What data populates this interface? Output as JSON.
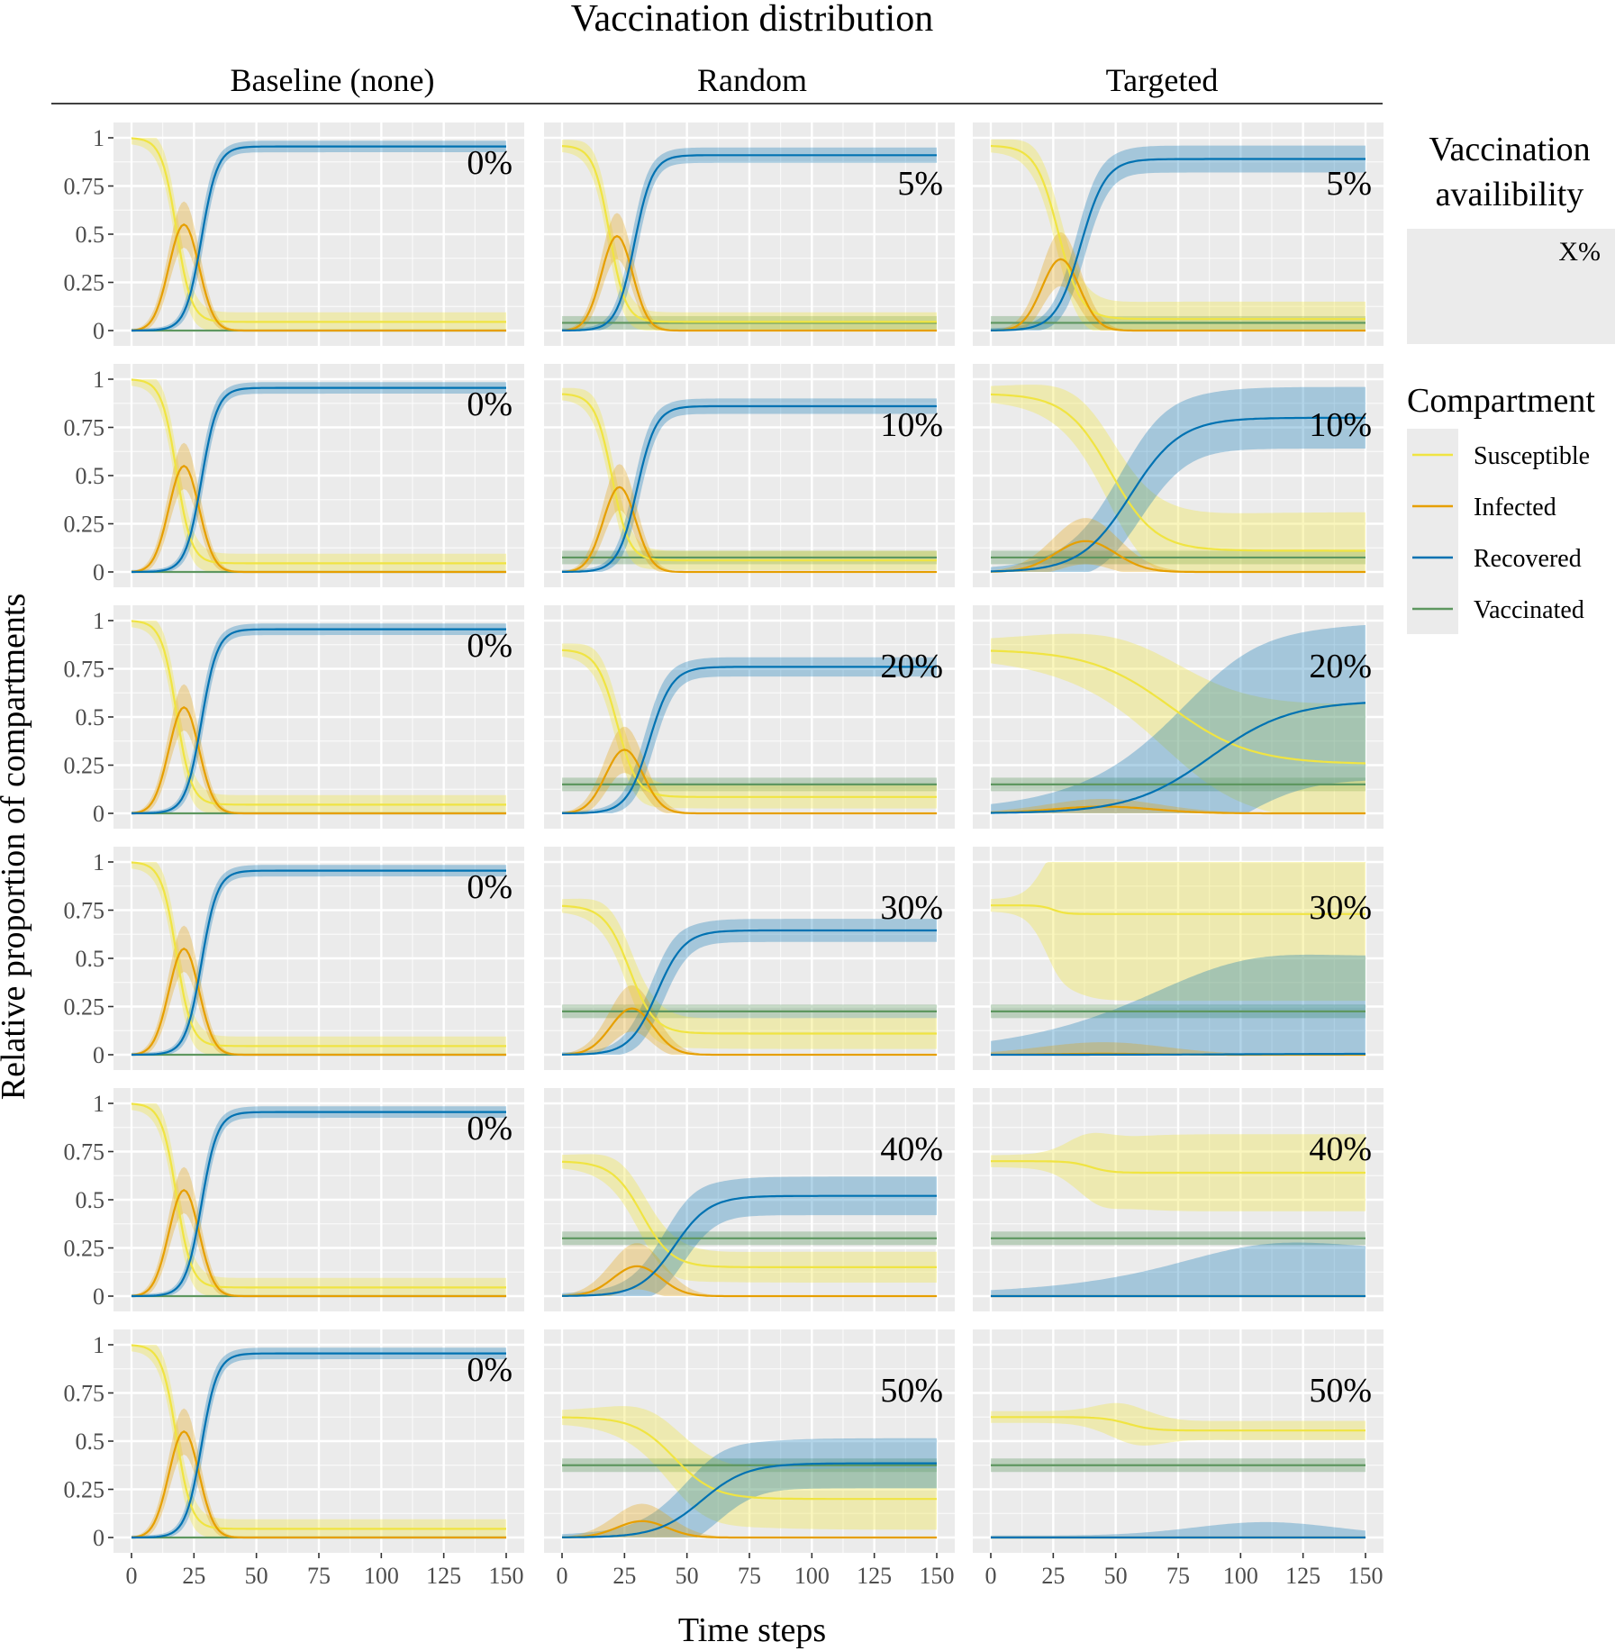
{
  "figure": {
    "title": "Vaccination distribution",
    "xlabel": "Time steps",
    "ylabel": "Relative proportion of compartments",
    "column_labels": [
      "Baseline (none)",
      "Random",
      "Targeted"
    ]
  },
  "legend": {
    "facet_title": "Vaccination availibility",
    "facet_example": "X%",
    "title": "Compartment",
    "items": [
      "Susceptible",
      "Infected",
      "Recovered",
      "Vaccinated"
    ]
  },
  "colors": {
    "Susceptible": "#f0e442",
    "Infected": "#e69f00",
    "Recovered": "#0072b2",
    "Vaccinated": "#5e9760",
    "panel_bg": "#ebebeb",
    "grid": "#ffffff"
  },
  "chart_data": {
    "type": "line",
    "x_range": [
      0,
      150
    ],
    "y_range": [
      0,
      1
    ],
    "x_ticks": [
      0,
      25,
      50,
      75,
      100,
      125,
      150
    ],
    "x_tick_labels": [
      "0",
      "25",
      "50",
      "75",
      "100",
      "125",
      "150"
    ],
    "y_ticks": [
      0,
      0.25,
      0.5,
      0.75,
      1
    ],
    "y_tick_labels": [
      "0",
      "0.25",
      "0.5",
      "0.75",
      "1"
    ],
    "grid": true,
    "rows": [
      [
        "0%",
        "5%",
        "5%"
      ],
      [
        "0%",
        "10%",
        "10%"
      ],
      [
        "0%",
        "20%",
        "20%"
      ],
      [
        "0%",
        "30%",
        "30%"
      ],
      [
        "0%",
        "40%",
        "40%"
      ],
      [
        "0%",
        "50%",
        "50%"
      ]
    ],
    "panel_series": {
      "Baseline (none)": [
        {
          "v": 0.0,
          "sStart": 1.0,
          "sEnd": 0.045,
          "sT": 18,
          "sW": 3.0,
          "sBandEnd": 0.02,
          "rEnd": 0.955,
          "rT": 28,
          "rW": 3.2,
          "rBand": 0.02,
          "iPeak": 0.55,
          "iT": 21,
          "iW": 6,
          "iBand": 0.12
        },
        {
          "v": 0.0,
          "sStart": 1.0,
          "sEnd": 0.045,
          "sT": 18,
          "sW": 3.0,
          "sBandEnd": 0.02,
          "rEnd": 0.955,
          "rT": 28,
          "rW": 3.2,
          "rBand": 0.02,
          "iPeak": 0.55,
          "iT": 21,
          "iW": 6,
          "iBand": 0.12
        },
        {
          "v": 0.0,
          "sStart": 1.0,
          "sEnd": 0.045,
          "sT": 18,
          "sW": 3.0,
          "sBandEnd": 0.02,
          "rEnd": 0.955,
          "rT": 28,
          "rW": 3.2,
          "rBand": 0.02,
          "iPeak": 0.55,
          "iT": 21,
          "iW": 6,
          "iBand": 0.12
        },
        {
          "v": 0.0,
          "sStart": 1.0,
          "sEnd": 0.045,
          "sT": 18,
          "sW": 3.0,
          "sBandEnd": 0.02,
          "rEnd": 0.955,
          "rT": 28,
          "rW": 3.2,
          "rBand": 0.02,
          "iPeak": 0.55,
          "iT": 21,
          "iW": 6,
          "iBand": 0.12
        },
        {
          "v": 0.0,
          "sStart": 1.0,
          "sEnd": 0.045,
          "sT": 18,
          "sW": 3.0,
          "sBandEnd": 0.02,
          "rEnd": 0.955,
          "rT": 28,
          "rW": 3.2,
          "rBand": 0.02,
          "iPeak": 0.55,
          "iT": 21,
          "iW": 6,
          "iBand": 0.12
        },
        {
          "v": 0.0,
          "sStart": 1.0,
          "sEnd": 0.045,
          "sT": 18,
          "sW": 3.0,
          "sBandEnd": 0.02,
          "rEnd": 0.955,
          "rT": 28,
          "rW": 3.2,
          "rBand": 0.02,
          "iPeak": 0.55,
          "iT": 21,
          "iW": 6,
          "iBand": 0.12
        }
      ],
      "Random": [
        {
          "v": 0.04,
          "sStart": 0.96,
          "sEnd": 0.045,
          "sT": 19,
          "sW": 3.2,
          "sBandEnd": 0.02,
          "rEnd": 0.91,
          "rT": 29,
          "rW": 3.6,
          "rBand": 0.03,
          "iPeak": 0.49,
          "iT": 22,
          "iW": 6.2,
          "iBand": 0.12
        },
        {
          "v": 0.075,
          "sStart": 0.925,
          "sEnd": 0.06,
          "sT": 20,
          "sW": 3.4,
          "sBandEnd": 0.02,
          "rEnd": 0.86,
          "rT": 30,
          "rW": 3.8,
          "rBand": 0.03,
          "iPeak": 0.44,
          "iT": 23,
          "iW": 6.5,
          "iBand": 0.12
        },
        {
          "v": 0.15,
          "sStart": 0.85,
          "sEnd": 0.085,
          "sT": 22,
          "sW": 4.0,
          "sBandEnd": 0.03,
          "rEnd": 0.76,
          "rT": 35,
          "rW": 4.5,
          "rBand": 0.04,
          "iPeak": 0.33,
          "iT": 25,
          "iW": 7.5,
          "iBand": 0.12
        },
        {
          "v": 0.225,
          "sStart": 0.775,
          "sEnd": 0.11,
          "sT": 27,
          "sW": 5.0,
          "sBandEnd": 0.05,
          "rEnd": 0.645,
          "rT": 38,
          "rW": 5.5,
          "rBand": 0.05,
          "iPeak": 0.24,
          "iT": 28,
          "iW": 8.5,
          "iBand": 0.12
        },
        {
          "v": 0.3,
          "sStart": 0.7,
          "sEnd": 0.15,
          "sT": 32,
          "sW": 6.0,
          "sBandEnd": 0.05,
          "rEnd": 0.52,
          "rT": 45,
          "rW": 7.0,
          "rBand": 0.09,
          "iPeak": 0.155,
          "iT": 30,
          "iW": 9.5,
          "iBand": 0.12
        },
        {
          "v": 0.375,
          "sStart": 0.625,
          "sEnd": 0.2,
          "sT": 45,
          "sW": 8.0,
          "sBandEnd": 0.13,
          "rEnd": 0.385,
          "rT": 56,
          "rW": 9.0,
          "rBand": 0.12,
          "iPeak": 0.085,
          "iT": 32,
          "iW": 10,
          "iBand": 0.09
        }
      ],
      "Targeted": [
        {
          "v": 0.04,
          "sStart": 0.96,
          "sEnd": 0.06,
          "sT": 27,
          "sW": 4.5,
          "sBandEnd": 0.06,
          "rEnd": 0.89,
          "rT": 36,
          "rW": 5.0,
          "rBand": 0.06,
          "iPeak": 0.37,
          "iT": 28,
          "iW": 7.5,
          "iBand": 0.14
        },
        {
          "v": 0.075,
          "sStart": 0.925,
          "sEnd": 0.11,
          "sT": 48,
          "sW": 9.0,
          "sBandEnd": 0.17,
          "rEnd": 0.8,
          "rT": 56,
          "rW": 10,
          "rBand": 0.15,
          "iPeak": 0.16,
          "iT": 38,
          "iW": 12,
          "iBand": 0.12
        },
        {
          "v": 0.15,
          "sStart": 0.85,
          "sEnd": 0.255,
          "sT": 72,
          "sW": 16,
          "sBandEnd": 0.3,
          "rEnd": 0.585,
          "rT": 88,
          "rW": 16,
          "rBand": 0.4,
          "iPeak": 0.035,
          "iT": 45,
          "iW": 20,
          "iBand": 0.04
        },
        {
          "v": 0.225,
          "sStart": 0.775,
          "sEnd": 0.73,
          "sT": 25,
          "sW": 2.5,
          "sBandEnd": 0.42,
          "rEnd": 0.005,
          "rT": 100,
          "rW": 20,
          "rBand": 0.51,
          "iPeak": 0.005,
          "iT": 45,
          "iW": 20,
          "iBand": 0.06
        },
        {
          "v": 0.3,
          "sStart": 0.7,
          "sEnd": 0.64,
          "sT": 40,
          "sW": 4.0,
          "sBandEnd": 0.17,
          "rEnd": 0.0,
          "rT": 110,
          "rW": 20,
          "rBand": 0.24,
          "iPeak": 0.0,
          "iT": 45,
          "iW": 20,
          "iBand": 0.0
        },
        {
          "v": 0.375,
          "sStart": 0.625,
          "sEnd": 0.555,
          "sT": 55,
          "sW": 5.0,
          "sBandEnd": 0.02,
          "rEnd": 0.0,
          "rT": 110,
          "rW": 20,
          "rBand": 0.0,
          "iPeak": 0.0,
          "iT": 45,
          "iW": 20,
          "iBand": 0.0
        }
      ]
    }
  }
}
